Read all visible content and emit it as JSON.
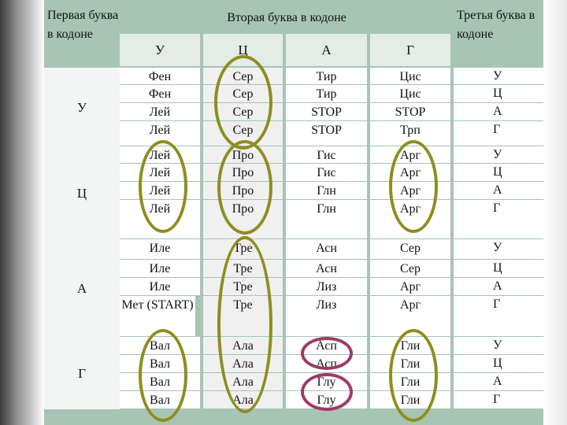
{
  "header": {
    "first_letter": "Первая буква в кодоне",
    "second_letter": "Вторая буква в кодоне",
    "third_letter": "Третья буква в кодоне",
    "second_columns": [
      "У",
      "Ц",
      "А",
      "Г"
    ]
  },
  "first_bases": [
    "У",
    "Ц",
    "А",
    "Г"
  ],
  "third_bases": [
    "У",
    "Ц",
    "А",
    "Г"
  ],
  "codon_table": [
    [
      [
        "Фен",
        "Фен",
        "Лей",
        "Лей"
      ],
      [
        "Сер",
        "Сер",
        "Сер",
        "Сер"
      ],
      [
        "Тир",
        "Тир",
        "STOP",
        "STOP"
      ],
      [
        "Цис",
        "Цис",
        "STOP",
        "Трп"
      ]
    ],
    [
      [
        "Лей",
        "Лей",
        "Лей",
        "Лей"
      ],
      [
        "Про",
        "Про",
        "Про",
        "Про"
      ],
      [
        "Гис",
        "Гис",
        "Глн",
        "Глн"
      ],
      [
        "Арг",
        "Арг",
        "Арг",
        "Арг"
      ]
    ],
    [
      [
        "Иле",
        "Иле",
        "Иле",
        "Мет (START)"
      ],
      [
        "Тре",
        "Тре",
        "Тре",
        "Тре"
      ],
      [
        "Асн",
        "Асн",
        "Лиз",
        "Лиз"
      ],
      [
        "Сер",
        "Сер",
        "Арг",
        "Арг"
      ]
    ],
    [
      [
        "Вал",
        "Вал",
        "Вал",
        "Вал"
      ],
      [
        "Ала",
        "Ала",
        "Ала",
        "Ала"
      ],
      [
        "Асп",
        "Асп",
        "Глу",
        "Глу"
      ],
      [
        "Гли",
        "Гли",
        "Гли",
        "Гли"
      ]
    ]
  ],
  "colors": {
    "header_bg": "#a6c5b4",
    "highlight_olive": "#8f8d1e",
    "highlight_purple": "#9e3a66"
  }
}
